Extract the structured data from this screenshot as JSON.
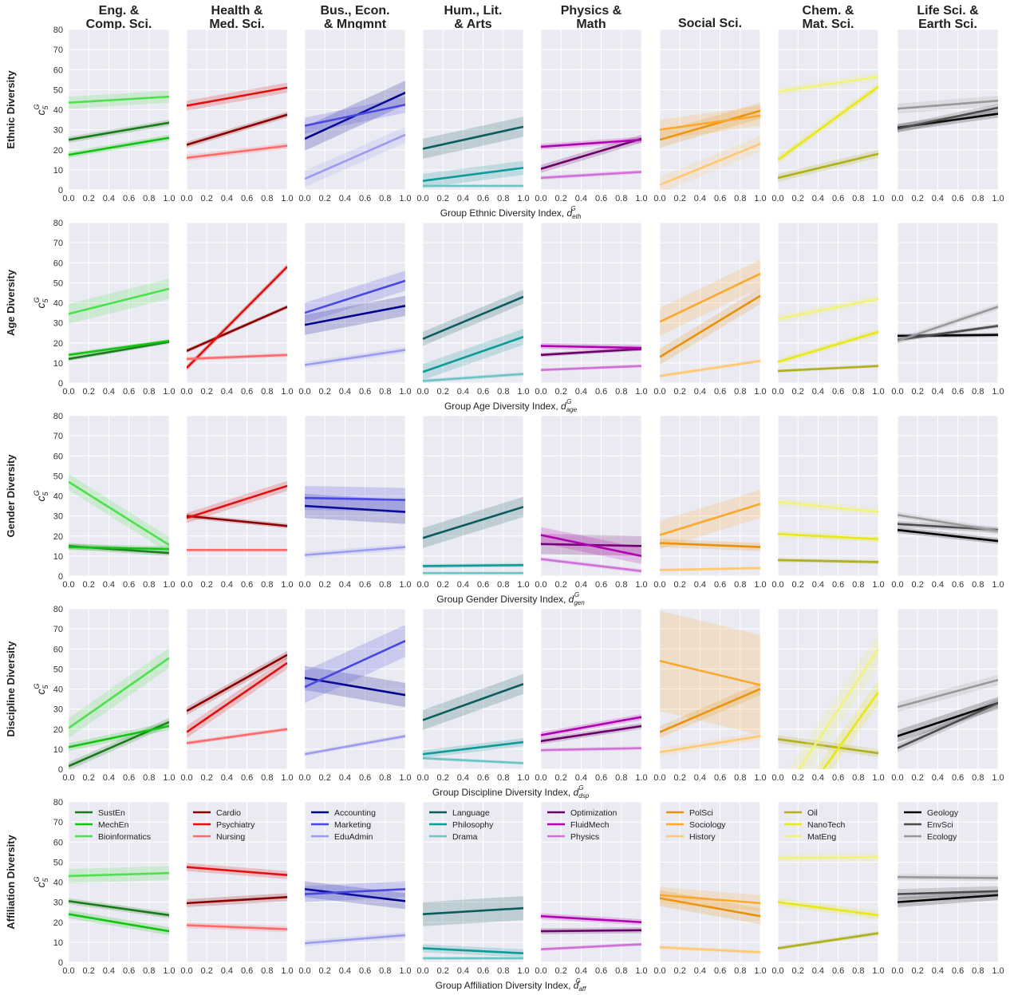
{
  "chart_data": {
    "type": "line",
    "colors": {
      "panel_background": "#eaeaf2",
      "grid": "#ffffff"
    },
    "columns": [
      {
        "title": "Eng. &\nComp. Sci.",
        "series": [
          {
            "name": "SustEn",
            "color": "#1a7a1a"
          },
          {
            "name": "MechEn",
            "color": "#12c312"
          },
          {
            "name": "Bioinformatics",
            "color": "#4fe04f"
          }
        ]
      },
      {
        "title": "Health &\nMed. Sci.",
        "series": [
          {
            "name": "Cardio",
            "color": "#8b0000"
          },
          {
            "name": "Psychiatry",
            "color": "#e01010"
          },
          {
            "name": "Nursing",
            "color": "#ff6b6b"
          }
        ]
      },
      {
        "title": "Bus., Econ.\n& Mngmnt",
        "series": [
          {
            "name": "Accounting",
            "color": "#00008b"
          },
          {
            "name": "Marketing",
            "color": "#4848e0"
          },
          {
            "name": "EduAdmin",
            "color": "#9b9bf0"
          }
        ]
      },
      {
        "title": "Hum., Lit.\n& Arts",
        "series": [
          {
            "name": "Language",
            "color": "#0b5c5c"
          },
          {
            "name": "Philosophy",
            "color": "#0f9a9a"
          },
          {
            "name": "Drama",
            "color": "#6cc4c4"
          }
        ]
      },
      {
        "title": "Physics &\nMath",
        "series": [
          {
            "name": "Optimization",
            "color": "#6b006b"
          },
          {
            "name": "FluidMech",
            "color": "#b300b3"
          },
          {
            "name": "Physics",
            "color": "#d070d8"
          }
        ]
      },
      {
        "title": "Social Sci.",
        "series": [
          {
            "name": "PolSci",
            "color": "#e8900c"
          },
          {
            "name": "Sociology",
            "color": "#fba82c"
          },
          {
            "name": "History",
            "color": "#ffc871"
          }
        ]
      },
      {
        "title": "Chem. &\nMat. Sci.",
        "series": [
          {
            "name": "Oil",
            "color": "#b0b01c"
          },
          {
            "name": "NanoTech",
            "color": "#e8e816"
          },
          {
            "name": "MatEng",
            "color": "#f2f27a"
          }
        ]
      },
      {
        "title": "Life Sci. &\nEarth Sci.",
        "series": [
          {
            "name": "Geology",
            "color": "#000000"
          },
          {
            "name": "EnvSci",
            "color": "#4c4c4c"
          },
          {
            "name": "Ecology",
            "color": "#999999"
          }
        ]
      }
    ],
    "rows": [
      {
        "label": "Ethnic Diversity",
        "xlabel": "Group Ethnic Diversity Index, ",
        "xsub": "eth"
      },
      {
        "label": "Age Diversity",
        "xlabel": "Group Age Diversity Index, ",
        "xsub": "age"
      },
      {
        "label": "Gender Diversity",
        "xlabel": "Group Gender Diversity Index, ",
        "xsub": "gen"
      },
      {
        "label": "Discipline Diversity",
        "xlabel": "Group Discipline Diversity Index, ",
        "xsub": "dsp"
      },
      {
        "label": "Affiliation Diversity",
        "xlabel": "Group Affiliation Diversity Index, ",
        "xsub": "aff"
      }
    ],
    "ylabel": "c",
    "ylabel_sup": "G",
    "ylabel_sub": "5",
    "x_ticks": [
      "0.0",
      "0.2",
      "0.4",
      "0.6",
      "0.8",
      "1.0"
    ],
    "y_ticks": [
      "0",
      "10",
      "20",
      "30",
      "40",
      "50",
      "60",
      "70",
      "80"
    ],
    "xlim": [
      0,
      1
    ],
    "ylim": [
      0,
      80
    ],
    "legend_row": 4,
    "legend_placement": "top-left",
    "lines": [
      [
        [
          [
            25,
            33.5,
            1.5
          ],
          [
            17.5,
            26,
            1.5
          ],
          [
            43.5,
            46.5,
            3
          ]
        ],
        [
          [
            22.5,
            37.5,
            1.5
          ],
          [
            42,
            51,
            2.5
          ],
          [
            16,
            22,
            1.5
          ]
        ],
        [
          [
            25.5,
            48.5,
            6
          ],
          [
            32,
            42.5,
            4
          ],
          [
            5.5,
            27.5,
            4
          ]
        ],
        [
          [
            20.5,
            31.5,
            5
          ],
          [
            4.5,
            11,
            3.5
          ],
          [
            2,
            2,
            0.5
          ]
        ],
        [
          [
            10.5,
            25.5,
            2
          ],
          [
            21.5,
            25,
            1.5
          ],
          [
            6,
            9,
            1
          ]
        ],
        [
          [
            25,
            39.5,
            4
          ],
          [
            30,
            37,
            5
          ],
          [
            2.5,
            23,
            4
          ]
        ],
        [
          [
            6,
            18,
            2
          ],
          [
            15,
            51.5,
            2
          ],
          [
            49,
            56.5,
            2
          ]
        ],
        [
          [
            31,
            38,
            2
          ],
          [
            30.5,
            41,
            2
          ],
          [
            40.5,
            44.5,
            2.5
          ]
        ]
      ],
      [
        [
          [
            12,
            20.5,
            1
          ],
          [
            14,
            21,
            1
          ],
          [
            34.5,
            47,
            5
          ]
        ],
        [
          [
            16,
            38,
            1
          ],
          [
            7.5,
            58,
            1.5
          ],
          [
            12,
            14,
            1
          ]
        ],
        [
          [
            29,
            38.5,
            5
          ],
          [
            35,
            51,
            5
          ],
          [
            9,
            16.5,
            1.5
          ]
        ],
        [
          [
            22,
            43,
            3.5
          ],
          [
            5.5,
            23,
            4
          ],
          [
            1,
            4.5,
            1
          ]
        ],
        [
          [
            14,
            17,
            1
          ],
          [
            18.5,
            17.5,
            1.5
          ],
          [
            6.5,
            8.5,
            0.8
          ]
        ],
        [
          [
            13,
            43.5,
            4
          ],
          [
            30.5,
            54.5,
            7
          ],
          [
            3.5,
            11,
            1
          ]
        ],
        [
          [
            6,
            8.5,
            0.8
          ],
          [
            10.5,
            25.5,
            1.5
          ],
          [
            32,
            42,
            2
          ]
        ],
        [
          [
            23.5,
            24,
            1
          ],
          [
            21.5,
            28.5,
            1
          ],
          [
            21,
            38,
            1.5
          ]
        ]
      ],
      [
        [
          [
            15,
            11.5,
            1.5
          ],
          [
            14.5,
            13.5,
            1.5
          ],
          [
            47,
            15.5,
            4
          ]
        ],
        [
          [
            30,
            25,
            1.2
          ],
          [
            29,
            45,
            2.5
          ],
          [
            13,
            13,
            0.8
          ]
        ],
        [
          [
            35,
            32,
            6
          ],
          [
            39,
            38,
            6
          ],
          [
            10.5,
            14.5,
            1.5
          ]
        ],
        [
          [
            19,
            34.5,
            5
          ],
          [
            5,
            5.5,
            1
          ],
          [
            1.5,
            1.5,
            0.5
          ]
        ],
        [
          [
            16,
            15,
            5
          ],
          [
            20.5,
            10,
            4
          ],
          [
            8.5,
            2.5,
            1
          ]
        ],
        [
          [
            16.5,
            14.5,
            2
          ],
          [
            20.5,
            36,
            7
          ],
          [
            3,
            4,
            0.8
          ]
        ],
        [
          [
            8,
            7,
            1
          ],
          [
            21,
            18.5,
            1.5
          ],
          [
            37,
            32,
            2
          ]
        ],
        [
          [
            23,
            17.5,
            1.5
          ],
          [
            26,
            23,
            1.5
          ],
          [
            30.5,
            22.5,
            1.5
          ]
        ]
      ],
      [
        [
          [
            1.5,
            23.5,
            2
          ],
          [
            11,
            21.5,
            2
          ],
          [
            20.5,
            55.5,
            5
          ]
        ],
        [
          [
            29,
            57,
            2
          ],
          [
            18.5,
            53,
            3
          ],
          [
            13,
            20,
            1
          ]
        ],
        [
          [
            45.5,
            37,
            6
          ],
          [
            41,
            64,
            8
          ],
          [
            7.5,
            16.5,
            1
          ]
        ],
        [
          [
            24.5,
            42.5,
            5
          ],
          [
            7.5,
            13.5,
            2
          ],
          [
            5.5,
            3,
            0.8
          ]
        ],
        [
          [
            14,
            21.5,
            1.5
          ],
          [
            17,
            26,
            1.5
          ],
          [
            9.5,
            10.5,
            1
          ]
        ],
        [
          [
            18.5,
            40,
            3
          ],
          [
            54,
            42,
            25
          ],
          [
            8.5,
            16.5,
            2
          ]
        ],
        [
          [
            15,
            8,
            2
          ],
          [
            -32,
            38.5,
            6
          ],
          [
            -16,
            60,
            8
          ]
        ],
        [
          [
            16.5,
            33,
            3
          ],
          [
            10.5,
            33,
            2
          ],
          [
            31,
            44.5,
            2.5
          ]
        ]
      ],
      [
        [
          [
            30.5,
            23.5,
            1.5
          ],
          [
            24,
            15.5,
            2
          ],
          [
            43,
            44.5,
            3.5
          ]
        ],
        [
          [
            29.5,
            32.5,
            2
          ],
          [
            47.5,
            43.5,
            2
          ],
          [
            18.5,
            16.5,
            1.5
          ]
        ],
        [
          [
            36.5,
            30.5,
            4
          ],
          [
            34,
            36.5,
            4
          ],
          [
            9.5,
            13.5,
            1.5
          ]
        ],
        [
          [
            24,
            27,
            6
          ],
          [
            7,
            4.5,
            2
          ],
          [
            2,
            2,
            0.5
          ]
        ],
        [
          [
            15.5,
            16,
            1.5
          ],
          [
            23,
            20,
            1.5
          ],
          [
            6.5,
            9,
            0.8
          ]
        ],
        [
          [
            32,
            23,
            4
          ],
          [
            33.5,
            29.5,
            4
          ],
          [
            7.5,
            5,
            1
          ]
        ],
        [
          [
            7,
            14.5,
            1
          ],
          [
            30,
            23.5,
            2
          ],
          [
            52,
            52.5,
            2
          ]
        ],
        [
          [
            30,
            33.5,
            2.5
          ],
          [
            34,
            35.5,
            2.5
          ],
          [
            42.5,
            42,
            1.5
          ]
        ]
      ]
    ]
  }
}
